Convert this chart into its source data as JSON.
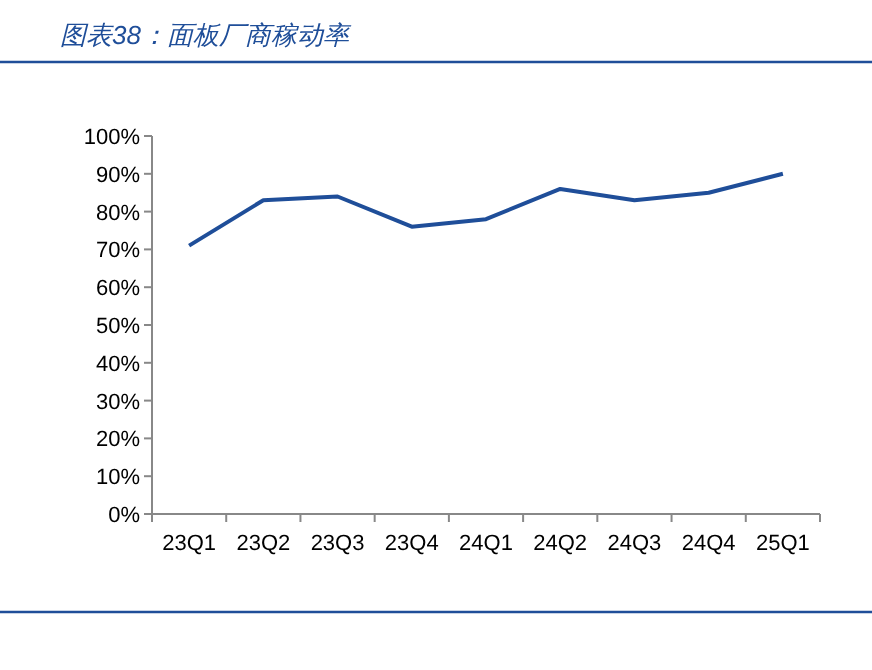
{
  "chart_data": {
    "type": "line",
    "title": "图表38：面板厂商稼动率",
    "categories": [
      "23Q1",
      "23Q2",
      "23Q3",
      "23Q4",
      "24Q1",
      "24Q2",
      "24Q3",
      "24Q4",
      "25Q1"
    ],
    "series": [
      {
        "color": "#1f4e99",
        "values": [
          71,
          83,
          84,
          76,
          78,
          86,
          83,
          85,
          90
        ]
      }
    ],
    "ylim": [
      0,
      100
    ],
    "yticks": [
      {
        "value": 0,
        "label": "0%"
      },
      {
        "value": 10,
        "label": "10%"
      },
      {
        "value": 20,
        "label": "20%"
      },
      {
        "value": 30,
        "label": "30%"
      },
      {
        "value": 40,
        "label": "40%"
      },
      {
        "value": 50,
        "label": "50%"
      },
      {
        "value": 60,
        "label": "60%"
      },
      {
        "value": 70,
        "label": "70%"
      },
      {
        "value": 80,
        "label": "80%"
      },
      {
        "value": 90,
        "label": "90%"
      },
      {
        "value": 100,
        "label": "100%"
      }
    ],
    "marker": "none",
    "line_style": "solid"
  }
}
